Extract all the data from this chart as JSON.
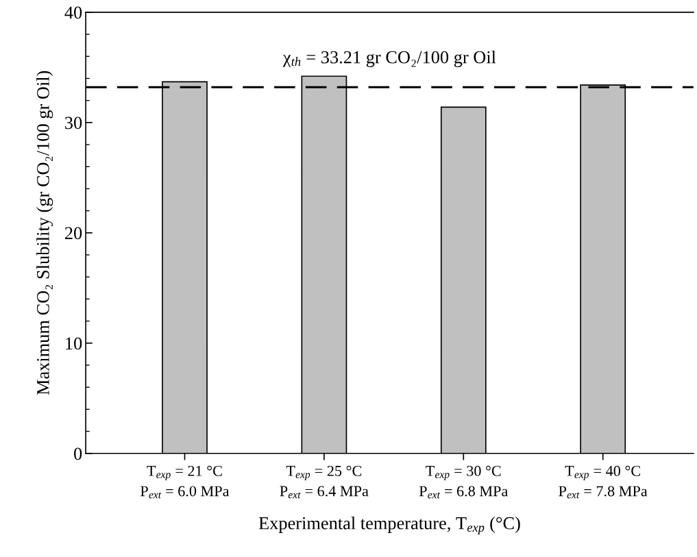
{
  "chart_data": {
    "type": "bar",
    "categories": [
      "T$_{exp}$ = 21 °C\nP$_{ext}$ = 6.0 MPa",
      "T$_{exp}$ = 25 °C\nP$_{ext}$ = 6.4 MPa",
      "T$_{exp}$ = 30 °C\nP$_{ext}$ = 6.8 MPa",
      "T$_{exp}$ = 40 °C\nP$_{ext}$ = 7.8 MPa"
    ],
    "values": [
      33.7,
      34.2,
      31.4,
      33.4
    ],
    "color": "#c0c0c0",
    "xlabel": "Experimental temperature, T$_{exp}$ (°C)",
    "ylabel": "Maximum CO₂ Slubility (gr CO₂/100 gr Oil)",
    "ylim": [
      0,
      40
    ],
    "yticks": [
      0,
      10,
      20,
      30,
      40
    ],
    "ref_lines": [
      {
        "axis": "y",
        "value": 33.21,
        "label": "χ$_{th}$ = 33.21 gr CO₂/100 gr Oil",
        "color": "#000000",
        "line_style": "dashed"
      }
    ],
    "grid": false,
    "legend": false
  }
}
